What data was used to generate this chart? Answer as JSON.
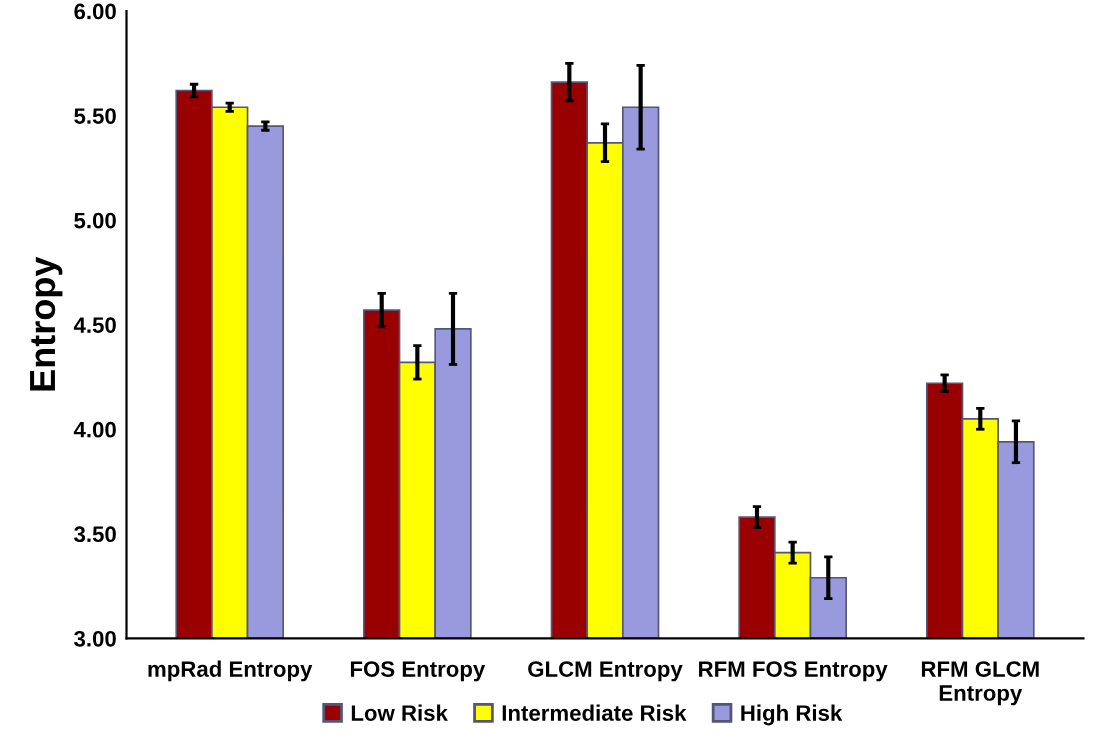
{
  "chart_data": {
    "type": "bar",
    "ylabel": "Entropy",
    "categories": [
      "mpRad Entropy",
      "FOS Entropy",
      "GLCM Entropy",
      "RFM FOS Entropy",
      "RFM GLCM\nEntropy"
    ],
    "series": [
      {
        "name": "Low Risk",
        "color": "#990000",
        "values": [
          5.62,
          4.57,
          5.66,
          3.58,
          4.22
        ],
        "errors": [
          0.03,
          0.08,
          0.09,
          0.05,
          0.04
        ]
      },
      {
        "name": "Intermediate Risk",
        "color": "#ffff00",
        "values": [
          5.54,
          4.32,
          5.37,
          3.41,
          4.05
        ],
        "errors": [
          0.02,
          0.08,
          0.09,
          0.05,
          0.05
        ]
      },
      {
        "name": "High Risk",
        "color": "#9999dd",
        "values": [
          5.45,
          4.48,
          5.54,
          3.29,
          3.94
        ],
        "errors": [
          0.02,
          0.17,
          0.2,
          0.1,
          0.1
        ]
      }
    ],
    "ylim": [
      3,
      6
    ],
    "yticks": [
      {
        "value": 3,
        "label": "3.00"
      },
      {
        "value": 3.5,
        "label": "3.50"
      },
      {
        "value": 4,
        "label": "4.00"
      },
      {
        "value": 4.5,
        "label": "4.50"
      },
      {
        "value": 5,
        "label": "5.00"
      },
      {
        "value": 5.5,
        "label": "5.50"
      },
      {
        "value": 6,
        "label": "6.00"
      }
    ],
    "grid": false,
    "legend": "bottom"
  }
}
